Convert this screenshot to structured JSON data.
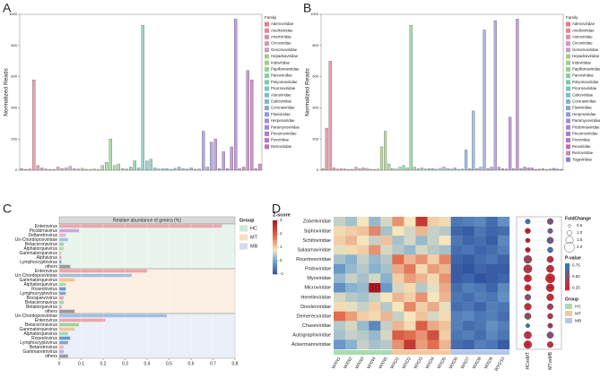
{
  "chart_data": [
    {
      "type": "box",
      "panel": "A",
      "ylabel": "Normalized Reads",
      "ylim": [
        0,
        1000
      ],
      "yticks": [
        0,
        200,
        400,
        600,
        800,
        1000
      ],
      "legend_title": "Family",
      "categories": [
        "Adenoviridae",
        "Anelloviridae",
        "Arteriviridae",
        "Circoviridae",
        "Genomoviridae",
        "Hepadnaviridae",
        "Iridoviridae",
        "Papillomaviridae",
        "Parvoviridae",
        "Polyomaviridae",
        "Picornaviridae",
        "Astroviridae",
        "Caliciviridae",
        "Coronaviridae",
        "Flaviviridae",
        "Herpesviridae",
        "Paramyxoviridae",
        "Pneumoviridae",
        "Poxviridae",
        "Retroviridae"
      ],
      "colors": [
        "#e77c8d",
        "#e0869b",
        "#d98fa9",
        "#d298b4",
        "#c7a0bd",
        "#a9c98a",
        "#9fd08a",
        "#8fd38f",
        "#84cf9a",
        "#7fcaa7",
        "#7bc4b8",
        "#7cbdc8",
        "#7fb3d2",
        "#86a8d8",
        "#8f9cd9",
        "#9b90d6",
        "#a486d2",
        "#ad7ccc",
        "#b774c4",
        "#c06cba"
      ],
      "values": [
        [
          10,
          5,
          8
        ],
        [
          580,
          30,
          15
        ],
        [
          8,
          5,
          6
        ],
        [
          20,
          10,
          15
        ],
        [
          25,
          10,
          8
        ],
        [
          12,
          6,
          4
        ],
        [
          8,
          5,
          30
        ],
        [
          50,
          200,
          30
        ],
        [
          40,
          10,
          8
        ],
        [
          20,
          60,
          15
        ],
        [
          930,
          60,
          70
        ],
        [
          15,
          8,
          10
        ],
        [
          10,
          6,
          12
        ],
        [
          20,
          10,
          8
        ],
        [
          15,
          6,
          8
        ],
        [
          250,
          20,
          180
        ],
        [
          200,
          10,
          120
        ],
        [
          10,
          150,
          970
        ],
        [
          10,
          20,
          640
        ],
        [
          580,
          10,
          40
        ]
      ]
    },
    {
      "type": "box",
      "panel": "B",
      "ylabel": "Normalized Reads",
      "ylim": [
        0,
        1000
      ],
      "yticks": [
        0,
        200,
        400,
        600,
        800,
        1000
      ],
      "legend_title": "Family",
      "categories": [
        "Adenoviridae",
        "Anelloviridae",
        "Astroviridae",
        "Circoviridae",
        "Genomoviridae",
        "Hepadnaviridae",
        "Iridoviridae",
        "Papillomaviridae",
        "Parvoviridae",
        "Polyomaviridae",
        "Picornaviridae",
        "Caliciviridae",
        "Coronaviridae",
        "Flaviviridae",
        "Herpesviridae",
        "Paramyxoviridae",
        "Picobirnaviridae",
        "Pneumoviridae",
        "Poxviridae",
        "Reoviridae",
        "Retroviridae",
        "Togaviridae"
      ],
      "colors": [
        "#e77c8d",
        "#e0869b",
        "#d98fa9",
        "#d298b4",
        "#c7a0bd",
        "#a9c98a",
        "#9fd08a",
        "#8fd38f",
        "#84cf9a",
        "#7fcaa7",
        "#7bc4b8",
        "#7cbdc8",
        "#7fb3d2",
        "#86a8d8",
        "#8f9cd9",
        "#9b90d6",
        "#a486d2",
        "#ad7ccc",
        "#b774c4",
        "#c06cba",
        "#b98fb0",
        "#8c7fc4"
      ],
      "values": [
        [
          10,
          270,
          700
        ],
        [
          15,
          8,
          10
        ],
        [
          8,
          5,
          6
        ],
        [
          20,
          10,
          15
        ],
        [
          12,
          6,
          4
        ],
        [
          8,
          150,
          250
        ],
        [
          40,
          10,
          8
        ],
        [
          20,
          30,
          15
        ],
        [
          930,
          20,
          10
        ],
        [
          15,
          8,
          10
        ],
        [
          10,
          6,
          12
        ],
        [
          20,
          10,
          8
        ],
        [
          15,
          6,
          8
        ],
        [
          130,
          10,
          380
        ],
        [
          10,
          20,
          900
        ],
        [
          10,
          20,
          960
        ],
        [
          20,
          10,
          8
        ],
        [
          340,
          10,
          970
        ],
        [
          10,
          20,
          15
        ],
        [
          15,
          6,
          8
        ],
        [
          10,
          5,
          8
        ],
        [
          12,
          8,
          6
        ]
      ]
    },
    {
      "type": "hbar",
      "panel": "C",
      "title": "Relative abundance of genera (%)",
      "xlim": [
        0,
        0.8
      ],
      "xticks": [
        0,
        0.1,
        0.2,
        0.3,
        0.4,
        0.5,
        0.6,
        0.7,
        0.8
      ],
      "legend_title": "Group",
      "groups": [
        {
          "name": "HC",
          "color": "#cfe8d4",
          "categories": [
            "Enterovirus",
            "Picobirnavirus",
            "Deltaretrovirus",
            "Un-Chordopoxvirinae",
            "Betacoronavirus",
            "Alphatorquevirus",
            "Gammatorquevirus",
            "Alphavirus",
            "Lymphocryptovirus",
            "others"
          ],
          "values": [
            0.74,
            0.09,
            0.03,
            0.04,
            0.02,
            0.02,
            0.01,
            0.01,
            0.01,
            0.05
          ],
          "colors": [
            "#f0a4aa",
            "#c8a6dc",
            "#e6b4c6",
            "#9fbfe2",
            "#9ed39a",
            "#a9d8b4",
            "#f4c38e",
            "#e8a0b8",
            "#7fa7c9",
            "#9a9a9a"
          ]
        },
        {
          "name": "MT",
          "color": "#f8dcc4",
          "categories": [
            "Enterovirus",
            "Un-Chordopoxvirinae",
            "Gammatorquevirus",
            "Alphatorquevirus",
            "Roseolovirus",
            "Lymphocryptovirus",
            "Bocaparvovirus",
            "Betacoronavirus",
            "Betatorquevirus",
            "others"
          ],
          "values": [
            0.4,
            0.33,
            0.07,
            0.03,
            0.03,
            0.03,
            0.02,
            0.02,
            0.01,
            0.07
          ],
          "colors": [
            "#f0a4aa",
            "#9fbfe2",
            "#f4c38e",
            "#a9d8b4",
            "#6a9bc8",
            "#7fa7c9",
            "#e8a0b8",
            "#9ed39a",
            "#b8a6d6",
            "#9a9a9a"
          ]
        },
        {
          "name": "MB",
          "color": "#d2dcef",
          "categories": [
            "Un-Chordopoxvirinae",
            "Enterovirus",
            "Betacoronavirus",
            "Gammatorquevirus",
            "Alphatorquevirus",
            "Roseolovirus",
            "Lymphocryptovirus",
            "Betaretrovirus",
            "Gammaretrovirus",
            "others"
          ],
          "values": [
            0.49,
            0.21,
            0.09,
            0.07,
            0.04,
            0.05,
            0.04,
            0.02,
            0.02,
            0.04
          ],
          "colors": [
            "#9fbfe2",
            "#f0a4aa",
            "#9ed39a",
            "#f4c38e",
            "#a9d8b4",
            "#6a9bc8",
            "#7fa7c9",
            "#e6b4c6",
            "#c8a6dc",
            "#9a9a9a"
          ]
        }
      ]
    },
    {
      "type": "heatmap",
      "panel": "D",
      "legend_title": "Z-score",
      "zlim": [
        -1,
        3
      ],
      "zticks": [
        -1,
        0,
        1,
        2,
        3
      ],
      "rows": [
        "Zobellviridae",
        "Siphoviridae",
        "Schitoviridae",
        "Salasmaviridae",
        "Rountreeviridae",
        "Podoviridae",
        "Myoviridae",
        "Microviridae",
        "Herelleviridae",
        "Drexlerviridae",
        "Demerecviridae",
        "Chaseviridae",
        "Autographiviridae",
        "Ackermannviridae"
      ],
      "columns": [
        "WXN1",
        "WXN2",
        "WXN3",
        "WXN4",
        "WXN5",
        "WXD1",
        "WXD2",
        "WXD3",
        "WXD4",
        "WXD5",
        "WXD6",
        "WXD7",
        "WXD8",
        "WXD9",
        "WXD10"
      ],
      "column_groups": [
        "HC",
        "HC",
        "HC",
        "HC",
        "HC",
        "MT",
        "MT",
        "MT",
        "MT",
        "MT",
        "MB",
        "MB",
        "MB",
        "MB",
        "MB"
      ],
      "values": [
        [
          0.5,
          0.3,
          0.8,
          0.2,
          0.6,
          1.5,
          0.8,
          2.5,
          1.0,
          0.9,
          -0.6,
          -0.5,
          -0.4,
          -0.7,
          -0.3
        ],
        [
          0.9,
          1.0,
          1.1,
          1.6,
          0.3,
          0.8,
          0.6,
          1.2,
          0.5,
          0.4,
          -0.8,
          -0.9,
          -0.6,
          -0.8,
          -0.7
        ],
        [
          1.0,
          1.2,
          0.8,
          0.5,
          1.1,
          0.3,
          0.6,
          0.2,
          0.5,
          0.8,
          -0.6,
          -0.8,
          -0.7,
          -0.9,
          -0.4
        ],
        [
          0.7,
          0.9,
          1.0,
          1.5,
          0.6,
          0.4,
          0.2,
          0.6,
          0.4,
          0.3,
          -0.7,
          -0.6,
          -0.8,
          -0.7,
          -0.5
        ],
        [
          0.3,
          0.1,
          0.5,
          0.2,
          0.4,
          1.8,
          1.2,
          1.5,
          1.0,
          1.6,
          -0.8,
          -0.9,
          -0.7,
          -0.6,
          -0.8
        ],
        [
          -0.2,
          0.2,
          0.4,
          0.1,
          0.3,
          1.3,
          1.7,
          0.9,
          1.4,
          1.2,
          -0.9,
          -1.0,
          -0.8,
          -0.9,
          -0.9
        ],
        [
          0.2,
          0.5,
          0.3,
          0.6,
          0.1,
          1.0,
          1.4,
          1.2,
          0.9,
          1.5,
          -0.9,
          -0.8,
          -1.0,
          -0.9,
          -0.8
        ],
        [
          -0.3,
          0.1,
          0.2,
          3.0,
          -0.2,
          0.6,
          0.9,
          0.4,
          0.7,
          1.3,
          -0.7,
          -0.5,
          -0.6,
          -0.8,
          -0.4
        ],
        [
          0.6,
          0.4,
          0.3,
          0.5,
          0.8,
          1.2,
          1.0,
          1.5,
          0.8,
          1.2,
          -0.6,
          -0.7,
          -0.5,
          -0.6,
          -0.3
        ],
        [
          0.9,
          0.7,
          0.5,
          1.0,
          0.4,
          0.8,
          1.6,
          1.0,
          1.3,
          0.7,
          -0.7,
          -0.6,
          -0.8,
          -0.5,
          -0.6
        ],
        [
          1.8,
          1.4,
          1.0,
          0.9,
          1.2,
          0.5,
          0.8,
          1.1,
          0.6,
          0.9,
          -0.5,
          -0.4,
          -0.6,
          -0.5,
          -0.7
        ],
        [
          0.4,
          0.6,
          0.2,
          -0.4,
          0.5,
          1.2,
          0.9,
          2.0,
          1.3,
          1.1,
          -0.5,
          -0.7,
          -0.6,
          -0.3,
          -0.5
        ],
        [
          0.3,
          0.5,
          0.4,
          0.2,
          0.6,
          2.0,
          1.8,
          1.5,
          2.2,
          1.0,
          -0.6,
          -0.5,
          -0.7,
          -0.4,
          -0.6
        ],
        [
          -0.2,
          0.1,
          0.5,
          0.3,
          0.4,
          1.5,
          2.5,
          1.4,
          1.8,
          1.2,
          -0.7,
          -0.8,
          -0.5,
          -0.6,
          -0.9
        ]
      ],
      "comparisons": [
        "HCvsMT",
        "MTvsMB"
      ],
      "foldchange": [
        [
          1.0,
          1.2
        ],
        [
          1.1,
          1.0
        ],
        [
          0.9,
          1.3
        ],
        [
          1.0,
          1.1
        ],
        [
          1.6,
          1.3
        ],
        [
          1.7,
          1.5
        ],
        [
          1.5,
          1.9
        ],
        [
          1.3,
          1.6
        ],
        [
          1.2,
          1.4
        ],
        [
          1.4,
          1.2
        ],
        [
          1.3,
          1.1
        ],
        [
          0.8,
          1.0
        ],
        [
          1.5,
          1.3
        ],
        [
          1.6,
          1.2
        ]
      ],
      "pvalue": [
        [
          0.7,
          0.5
        ],
        [
          0.1,
          0.6
        ],
        [
          0.15,
          0.55
        ],
        [
          0.2,
          0.7
        ],
        [
          0.4,
          0.3
        ],
        [
          0.35,
          0.3
        ],
        [
          0.05,
          0.1
        ],
        [
          0.08,
          0.05
        ],
        [
          0.5,
          0.2
        ],
        [
          0.3,
          0.4
        ],
        [
          0.45,
          0.35
        ],
        [
          0.7,
          0.4
        ],
        [
          0.3,
          0.5
        ],
        [
          0.1,
          0.3
        ]
      ],
      "significance": [
        [
          null,
          null
        ],
        [
          "***",
          null
        ],
        [
          "***",
          null
        ],
        [
          "***",
          null
        ],
        [
          null,
          null
        ],
        [
          null,
          null
        ],
        [
          "*",
          "**"
        ],
        [
          "*",
          "***"
        ],
        [
          null,
          null
        ],
        [
          null,
          null
        ],
        [
          null,
          null
        ],
        [
          null,
          "*"
        ],
        [
          null,
          null
        ],
        [
          "**",
          null
        ]
      ],
      "fc_legend_title": "FoldChange",
      "fc_ticks": [
        0.5,
        {
          "value": 1,
          "label": "1.0"
        },
        1.5,
        {
          "value": 2,
          "label": "2.0"
        }
      ],
      "p_legend_title": "P-value",
      "p_ticks": [
        0.75,
        {
          "value": 0.5,
          "label": "0.50"
        },
        0.25
      ],
      "group_legend_title": "Group",
      "groups": [
        "HC",
        "MT",
        "MB"
      ],
      "group_colors": [
        "#a8dcae",
        "#f6c79c",
        "#b6c6e6"
      ]
    }
  ]
}
